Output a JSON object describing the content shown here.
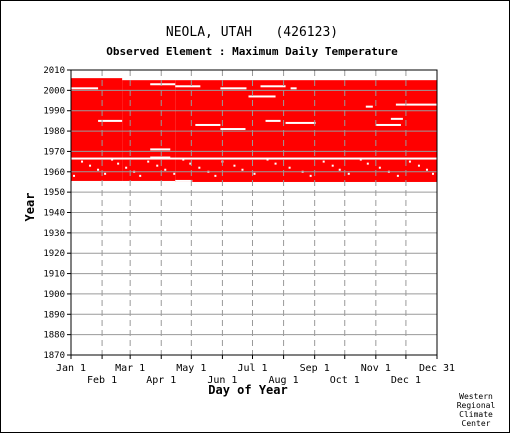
{
  "chart_data": {
    "type": "heatmap",
    "title": "NEOLA, UTAH   (426123)",
    "subtitle": "Observed Element : Maximum Daily Temperature",
    "xlabel": "Day of Year",
    "ylabel": "Year",
    "ylim": [
      1870,
      2010
    ],
    "xlim": [
      1,
      366
    ],
    "y_ticks": [
      2010,
      2000,
      1990,
      1980,
      1970,
      1960,
      1950,
      1940,
      1930,
      1920,
      1910,
      1900,
      1890,
      1880,
      1870
    ],
    "x_ticks_top_row": [
      {
        "label": "Jan 1",
        "day": 1
      },
      {
        "label": "Mar 1",
        "day": 60
      },
      {
        "label": "May 1",
        "day": 121
      },
      {
        "label": "Jul 1",
        "day": 182
      },
      {
        "label": "Sep 1",
        "day": 244
      },
      {
        "label": "Nov 1",
        "day": 305
      },
      {
        "label": "Dec 31",
        "day": 366
      }
    ],
    "x_ticks_bottom_row": [
      {
        "label": "Feb 1",
        "day": 32
      },
      {
        "label": "Apr 1",
        "day": 91
      },
      {
        "label": "Jun 1",
        "day": 152
      },
      {
        "label": "Aug 1",
        "day": 213
      },
      {
        "label": "Oct 1",
        "day": 274
      },
      {
        "label": "Dec 1",
        "day": 335
      }
    ],
    "grid": true,
    "data_color": "#ff0000",
    "data_blocks": [
      {
        "day_start": 1,
        "day_end": 52,
        "year_start": 1955.5,
        "year_end": 2006
      },
      {
        "day_start": 52,
        "day_end": 105,
        "year_start": 1955.5,
        "year_end": 2005
      },
      {
        "day_start": 105,
        "day_end": 366,
        "year_start": 1955,
        "year_end": 2005
      }
    ],
    "missing_gaps": [
      {
        "day_start": 1,
        "day_end": 28,
        "year": 2001
      },
      {
        "day_start": 28,
        "day_end": 52,
        "year": 1985
      },
      {
        "day_start": 80,
        "day_end": 105,
        "year": 2003
      },
      {
        "day_start": 80,
        "day_end": 100,
        "year": 1967
      },
      {
        "day_start": 80,
        "day_end": 100,
        "year": 1971
      },
      {
        "day_start": 105,
        "day_end": 130,
        "year": 2002
      },
      {
        "day_start": 105,
        "day_end": 122,
        "year": 1955.5
      },
      {
        "day_start": 125,
        "day_end": 150,
        "year": 1983
      },
      {
        "day_start": 150,
        "day_end": 175,
        "year": 1981
      },
      {
        "day_start": 150,
        "day_end": 176,
        "year": 2001
      },
      {
        "day_start": 178,
        "day_end": 205,
        "year": 1997
      },
      {
        "day_start": 190,
        "day_end": 215,
        "year": 2002
      },
      {
        "day_start": 195,
        "day_end": 210,
        "year": 1985
      },
      {
        "day_start": 215,
        "day_end": 245,
        "year": 1984
      },
      {
        "day_start": 220,
        "day_end": 226,
        "year": 2001
      },
      {
        "day_start": 295,
        "day_end": 302,
        "year": 1992
      },
      {
        "day_start": 305,
        "day_end": 330,
        "year": 1983
      },
      {
        "day_start": 320,
        "day_end": 332,
        "year": 1986
      },
      {
        "day_start": 325,
        "day_end": 366,
        "year": 1993
      },
      {
        "day_start": 1,
        "day_end": 366,
        "year": 1966.5
      }
    ]
  },
  "credit": [
    "Western",
    "Regional",
    "Climate",
    "Center"
  ]
}
